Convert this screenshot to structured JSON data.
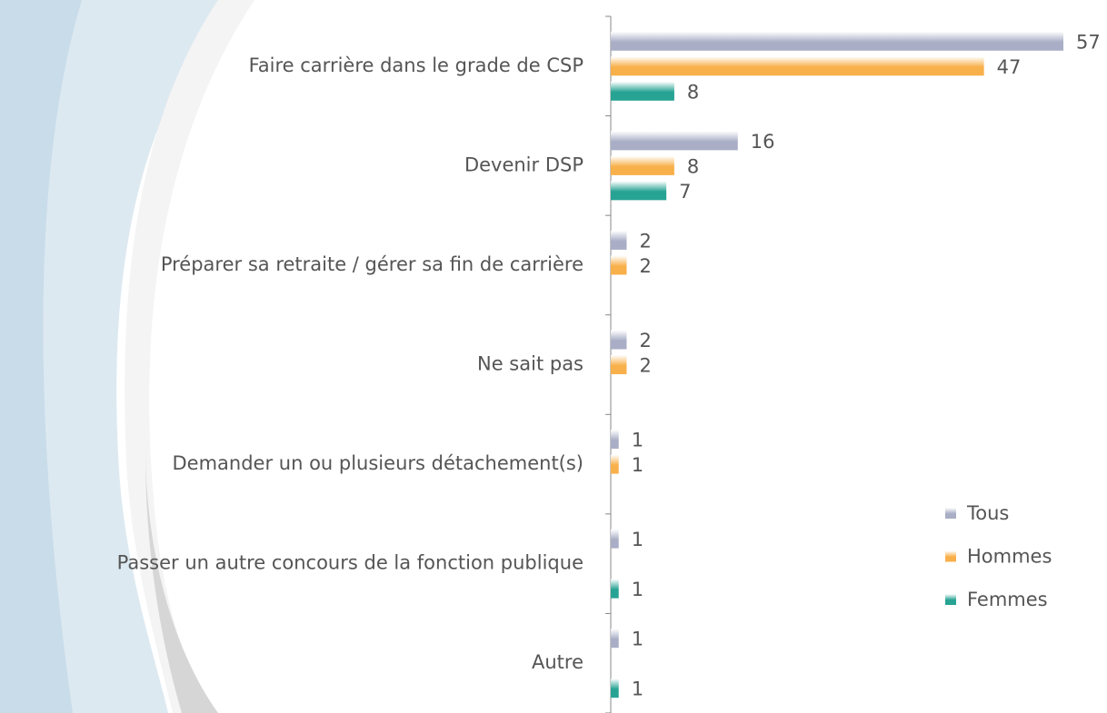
{
  "chart_data": {
    "type": "barh",
    "categories": [
      "Faire carrière dans le grade de CSP",
      "Devenir DSP",
      "Préparer sa retraite / gérer sa fin de carrière",
      "Ne sait pas",
      "Demander un ou plusieurs détachement(s)",
      "Passer un autre concours de la fonction publique",
      "Autre"
    ],
    "series": [
      {
        "name": "Tous",
        "color": "#a9aec6",
        "values": [
          57,
          16,
          2,
          2,
          1,
          1,
          1
        ]
      },
      {
        "name": "Hommes",
        "color": "#f8b04a",
        "values": [
          47,
          8,
          2,
          2,
          1,
          null,
          null
        ]
      },
      {
        "name": "Femmes",
        "color": "#27a394",
        "values": [
          8,
          7,
          null,
          null,
          null,
          1,
          1
        ]
      }
    ],
    "legend": "right"
  }
}
